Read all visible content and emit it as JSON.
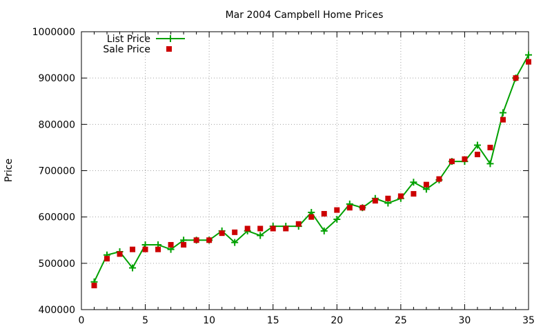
{
  "chart_data": {
    "type": "line",
    "title": "Mar 2004 Campbell Home Prices",
    "xlabel": "",
    "ylabel": "Price",
    "xlim": [
      0,
      35
    ],
    "ylim": [
      400000,
      1000000
    ],
    "xticks": [
      0,
      5,
      10,
      15,
      20,
      25,
      30,
      35
    ],
    "yticks": [
      400000,
      500000,
      600000,
      700000,
      800000,
      900000,
      1000000
    ],
    "grid": true,
    "legend_position": "top-left",
    "series": [
      {
        "name": "List Price",
        "style": "line+cross",
        "color": "#00a000",
        "x": [
          1,
          2,
          3,
          4,
          5,
          6,
          7,
          8,
          9,
          10,
          11,
          12,
          13,
          14,
          15,
          16,
          17,
          18,
          19,
          20,
          21,
          22,
          23,
          24,
          25,
          26,
          27,
          28,
          29,
          30,
          31,
          32,
          33,
          34,
          35
        ],
        "values": [
          460000,
          518000,
          525000,
          490000,
          540000,
          540000,
          530000,
          550000,
          550000,
          550000,
          570000,
          545000,
          570000,
          560000,
          580000,
          580000,
          580000,
          610000,
          570000,
          595000,
          628000,
          620000,
          640000,
          630000,
          640000,
          675000,
          660000,
          680000,
          720000,
          720000,
          755000,
          715000,
          825000,
          900000,
          950000
        ]
      },
      {
        "name": "Sale Price",
        "style": "square",
        "color": "#cc0000",
        "x": [
          1,
          2,
          3,
          4,
          5,
          6,
          7,
          8,
          9,
          10,
          11,
          12,
          13,
          14,
          15,
          16,
          17,
          18,
          19,
          20,
          21,
          22,
          23,
          24,
          25,
          26,
          27,
          28,
          29,
          30,
          31,
          32,
          33,
          34,
          35
        ],
        "values": [
          452000,
          510000,
          520000,
          530000,
          530000,
          530000,
          540000,
          540000,
          550000,
          550000,
          565000,
          567000,
          575000,
          575000,
          575000,
          575000,
          585000,
          600000,
          607000,
          615000,
          620000,
          620000,
          635000,
          640000,
          645000,
          650000,
          670000,
          682000,
          720000,
          725000,
          735000,
          750000,
          810000,
          900000,
          935000
        ]
      }
    ]
  }
}
